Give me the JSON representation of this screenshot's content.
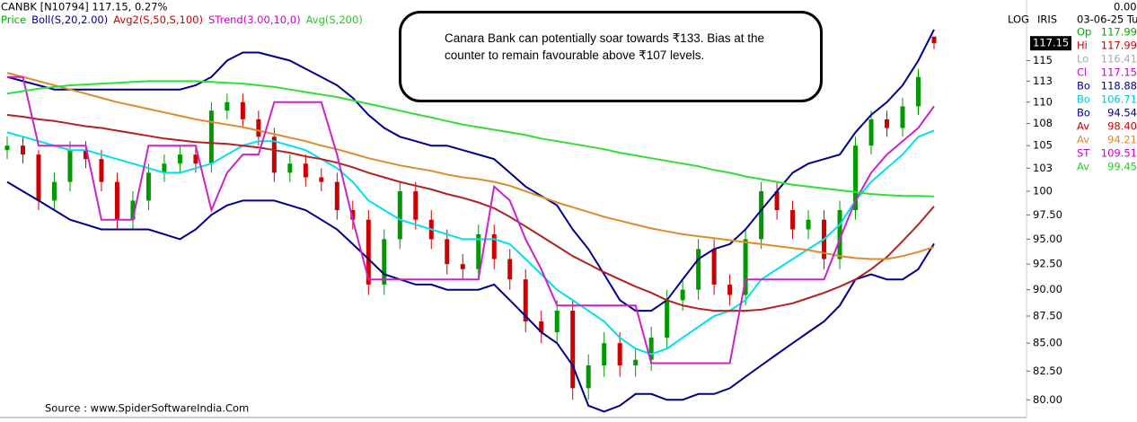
{
  "chart_data": {
    "type": "candlestick",
    "header": "CANBK [N10794]  117.15,  0.27%",
    "log_label": "LOG",
    "panel_label": "IRIS",
    "source": "Source : www.SpiderSoftwareIndia.Com",
    "annotation": [
      "Canara Bank can potentially soar towards ₹133. Bias at the",
      "counter to remain favourable above ₹107 levels."
    ],
    "log_scale": true,
    "ylim": [
      78.5,
      122.7
    ],
    "yticks": [
      {
        "value": 80,
        "label": "80.00"
      },
      {
        "value": 82.5,
        "label": "82.50"
      },
      {
        "value": 85,
        "label": "85.00"
      },
      {
        "value": 87.5,
        "label": "87.50"
      },
      {
        "value": 90,
        "label": "90.00"
      },
      {
        "value": 92.5,
        "label": "92.50"
      },
      {
        "value": 95,
        "label": "95.00"
      },
      {
        "value": 97.5,
        "label": "97.50"
      },
      100,
      {
        "value": 102.5,
        "label": "103"
      },
      105,
      {
        "value": 107.5,
        "label": "108"
      },
      110,
      {
        "value": 112.5,
        "label": "113"
      },
      115
    ],
    "price_marker": 117.15,
    "up_color": "#009900",
    "down_color": "#cc0000",
    "price_legend": {
      "name": "Price",
      "color": "#00aa00"
    },
    "ohlc": {
      "open": [
        104.5,
        105,
        104,
        99,
        101,
        104.5,
        103.5,
        101,
        97,
        99,
        102,
        103,
        104,
        103,
        109,
        110,
        108,
        106,
        102,
        103,
        101.5,
        101,
        98,
        97,
        90.5,
        95,
        100,
        97,
        95,
        92.5,
        92,
        95.5,
        93,
        91,
        87,
        86,
        88,
        81,
        83,
        85,
        83,
        83.5,
        85.5,
        89,
        90,
        94,
        90.5,
        89.5,
        95,
        100,
        98,
        96,
        97,
        93,
        98,
        105,
        108,
        107,
        109.5,
        117.99
      ],
      "high": [
        106,
        106,
        104.5,
        102,
        105.5,
        105.5,
        104.5,
        102,
        100,
        103,
        104,
        105,
        105,
        110,
        111,
        111,
        109,
        107,
        104,
        104,
        102.5,
        102,
        99,
        98,
        96,
        101,
        101,
        98,
        96,
        93.5,
        96.5,
        96.5,
        94,
        92,
        88,
        89,
        89,
        84,
        86,
        86,
        84.5,
        86.5,
        90,
        91,
        95,
        95,
        91.5,
        96,
        101,
        101,
        99,
        98,
        98,
        99,
        106,
        109,
        109,
        110.5,
        114,
        117.99
      ],
      "low": [
        103.5,
        103,
        98,
        98,
        100,
        102.5,
        100,
        96,
        96,
        98,
        101,
        102,
        102,
        102,
        108,
        107,
        105,
        101,
        101,
        100.5,
        100,
        97,
        96,
        89.5,
        89.5,
        94,
        96,
        94,
        91.5,
        91,
        91,
        92,
        90,
        86,
        85,
        85,
        80,
        80,
        82,
        82,
        82,
        82.5,
        84.5,
        88,
        89,
        89.5,
        88.5,
        88.5,
        94,
        97,
        95,
        95,
        92,
        92,
        97,
        104,
        106,
        106,
        108.5,
        116.41
      ],
      "close": [
        105,
        104,
        99,
        101,
        104.5,
        103.5,
        101,
        97,
        99,
        102,
        103,
        104,
        103,
        109,
        110,
        108,
        106,
        102,
        103,
        101.5,
        101,
        98,
        97,
        90.5,
        95,
        100,
        97,
        95,
        92.5,
        92,
        95.5,
        93,
        91,
        87,
        86,
        88,
        81,
        83,
        85,
        83,
        83.5,
        85.5,
        89,
        90,
        94,
        90.5,
        89.5,
        95,
        100,
        98,
        96,
        97,
        93,
        98,
        105,
        108,
        107,
        109.5,
        113,
        117.15
      ]
    },
    "indicators": [
      {
        "name": "Boll(S,20,2.00)",
        "color": "#00008b",
        "lines": [
          {
            "color": "#00008b",
            "values": [
              113,
              112.5,
              112,
              111.5,
              111.5,
              111.5,
              111.5,
              111.5,
              111.5,
              111.5,
              111.5,
              111.5,
              112,
              113,
              115,
              116,
              116,
              115.5,
              115,
              114,
              113,
              112,
              110.5,
              108.5,
              107,
              106,
              105.5,
              105,
              105,
              104.5,
              104,
              103.5,
              102,
              100.5,
              99.5,
              98.5,
              96,
              94,
              91.5,
              89,
              88,
              88,
              89,
              91,
              93,
              94,
              94.5,
              96,
              98,
              100,
              102,
              103,
              103.5,
              104,
              106.5,
              108.5,
              110,
              112,
              115,
              118.88
            ]
          },
          {
            "color": "#00e0ee",
            "values": [
              106.5,
              106,
              105.5,
              105,
              104.5,
              104.5,
              104,
              103.5,
              103,
              102.5,
              102,
              102,
              102.5,
              103,
              104,
              105,
              105.5,
              105.5,
              105,
              104.5,
              103.5,
              102.5,
              101,
              99,
              98,
              97,
              96.5,
              96,
              95.5,
              95,
              95,
              95,
              94.5,
              93,
              91.5,
              90,
              89,
              88,
              87,
              85.5,
              84.5,
              84,
              84.5,
              85.5,
              86.5,
              87.5,
              88,
              89,
              91,
              92,
              93,
              94,
              95,
              96.5,
              99,
              101,
              102.5,
              104,
              106,
              106.71
            ]
          },
          {
            "color": "#00008b",
            "values": [
              101,
              100,
              99,
              98,
              97,
              96.5,
              96,
              96,
              96,
              96,
              95.5,
              95,
              96,
              97.5,
              98.5,
              99,
              99,
              99,
              98.5,
              98,
              97,
              96,
              94.5,
              93,
              91.5,
              91,
              90.5,
              90.5,
              90,
              90,
              90,
              90.5,
              89,
              87.5,
              86,
              85,
              83,
              79.5,
              79,
              79.5,
              80.5,
              80.5,
              80,
              80,
              80.5,
              80.5,
              81,
              82,
              83,
              84,
              85,
              86,
              87,
              88.5,
              91,
              91.5,
              91,
              91,
              92,
              94.54
            ]
          }
        ]
      },
      {
        "name": "Avg2(S,50,S,100)",
        "color": "#cc0000",
        "lines": [
          {
            "color": "#b22222",
            "values": [
              108.5,
              108.3,
              108,
              107.8,
              107.5,
              107.2,
              107,
              106.7,
              106.4,
              106.1,
              105.8,
              105.6,
              105.4,
              105.3,
              105.2,
              105,
              104.8,
              104.5,
              104.2,
              103.8,
              103.5,
              103.1,
              102.6,
              102,
              101.5,
              101,
              100.6,
              100.2,
              99.7,
              99.3,
              98.8,
              98.2,
              97.3,
              96.3,
              95.3,
              94.3,
              93.3,
              92.5,
              91.7,
              91,
              90.3,
              89.7,
              89,
              88.5,
              88.2,
              88,
              88,
              88,
              88.1,
              88.4,
              88.7,
              89.2,
              89.7,
              90.3,
              91,
              92,
              93.2,
              94.8,
              96.5,
              98.4
            ]
          },
          {
            "color": "#e08a2a",
            "values": [
              113.5,
              113,
              112.5,
              112,
              111.5,
              111,
              110.5,
              110,
              109.6,
              109.2,
              108.8,
              108.4,
              108,
              107.7,
              107.4,
              107.1,
              106.7,
              106.3,
              105.9,
              105.5,
              105,
              104.6,
              104.1,
              103.6,
              103.2,
              102.8,
              102.5,
              102.2,
              101.8,
              101.5,
              101.3,
              101,
              100.6,
              100,
              99.4,
              98.8,
              98.3,
              97.8,
              97.3,
              96.9,
              96.5,
              96.1,
              95.8,
              95.5,
              95.3,
              95.1,
              94.9,
              94.7,
              94.5,
              94.3,
              94.1,
              93.9,
              93.6,
              93.3,
              93.1,
              93,
              93,
              93.3,
              93.7,
              94.21
            ]
          }
        ]
      },
      {
        "name": "STrend(3.00,10,0)",
        "color": "#cc00cc",
        "lines": [
          {
            "color": "#cc22cc",
            "values": [
              113,
              113,
              105,
              105,
              105,
              105,
              97,
              97,
              97,
              105,
              105,
              105,
              105,
              98,
              102,
              104,
              104,
              110,
              110,
              110,
              110,
              104,
              97,
              91,
              91,
              91,
              91,
              91,
              91,
              91,
              91,
              100.5,
              99,
              95,
              92,
              88.5,
              88.5,
              88.5,
              88.5,
              88.5,
              88.5,
              83.2,
              83.2,
              83.2,
              83.2,
              83.2,
              83.2,
              91,
              91,
              91,
              91,
              91,
              91,
              95,
              99,
              102,
              104,
              105.5,
              107,
              109.51
            ]
          }
        ]
      },
      {
        "name": "Avg(S,200)",
        "color": "#22cc22",
        "lines": [
          {
            "color": "#33dd33",
            "values": [
              111,
              111.3,
              111.6,
              111.8,
              112,
              112.1,
              112.2,
              112.3,
              112.4,
              112.5,
              112.5,
              112.5,
              112.5,
              112.4,
              112.3,
              112.2,
              112,
              111.8,
              111.5,
              111.2,
              110.9,
              110.6,
              110.2,
              109.8,
              109.4,
              109,
              108.6,
              108.2,
              107.8,
              107.4,
              107.1,
              106.8,
              106.5,
              106.2,
              105.8,
              105.5,
              105.2,
              104.9,
              104.6,
              104.2,
              103.9,
              103.6,
              103.3,
              103,
              102.7,
              102.3,
              102,
              101.6,
              101.3,
              101,
              100.7,
              100.5,
              100.3,
              100.1,
              99.9,
              99.7,
              99.6,
              99.5,
              99.5,
              99.45
            ]
          }
        ]
      }
    ],
    "info": {
      "change": "0.00",
      "date": "03-06-25 Tu",
      "rows": [
        {
          "label": "Op",
          "value": "117.99",
          "color": "#00aa00"
        },
        {
          "label": "Hi",
          "value": "117.99",
          "color": "#cc0000"
        },
        {
          "label": "Lo",
          "value": "116.41",
          "color": "#aaaaaa"
        },
        {
          "label": "Cl",
          "value": "117.15",
          "color": "#cc00cc"
        },
        {
          "label": "Bo",
          "value": "118.88",
          "color": "#00008b"
        },
        {
          "label": "Bo",
          "value": "106.71",
          "color": "#00c8d8"
        },
        {
          "label": "Bo",
          "value": "94.54",
          "color": "#00008b"
        },
        {
          "label": "Av",
          "value": "98.40",
          "color": "#cc0000"
        },
        {
          "label": "Av",
          "value": "94.21",
          "color": "#e08a2a"
        },
        {
          "label": "ST",
          "value": "109.51",
          "color": "#cc00cc"
        },
        {
          "label": "Av",
          "value": "99.45",
          "color": "#22cc22"
        }
      ]
    }
  }
}
